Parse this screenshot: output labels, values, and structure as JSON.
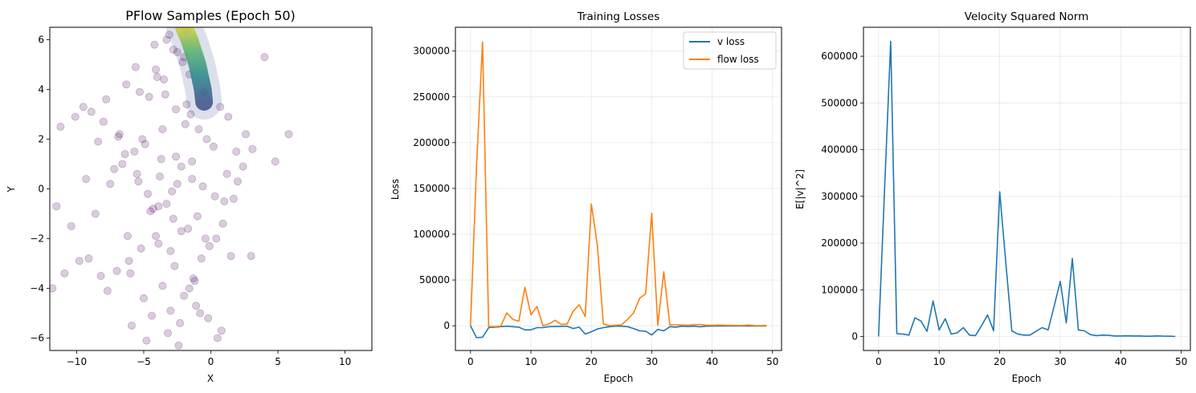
{
  "chart_data": [
    {
      "type": "scatter",
      "title": "PFlow Samples (Epoch 50)",
      "xlabel": "X",
      "ylabel": "Y",
      "xlim": [
        -12,
        12
      ],
      "ylim": [
        -6.5,
        6.5
      ],
      "xticks": [
        -10,
        -5,
        0,
        5,
        10
      ],
      "yticks": [
        -6,
        -4,
        -2,
        0,
        2,
        4,
        6
      ],
      "grid": false,
      "colormap": "viridis",
      "point_color": "#440154",
      "point_alpha": 0.2,
      "series": [
        {
          "x": [
            -4.2,
            -3.1,
            -2.5,
            -1.8,
            -5.6,
            -6.3,
            -7.8,
            -8.9,
            -10.1,
            -11.2,
            -9.5,
            -6.8,
            -4.9,
            -3.7,
            -2.2,
            -1.4,
            -0.6,
            0.3,
            1.2,
            1.9,
            2.6,
            3.1,
            4.0,
            4.8,
            5.8,
            -3.3,
            -2.8,
            -4.1,
            -5.2,
            -6.1,
            -7.0,
            -3.6,
            -2.0,
            -1.1,
            -0.2,
            0.8,
            1.5,
            -8.2,
            -9.1,
            -10.4,
            -11.5,
            -5.4,
            -4.5,
            -3.9,
            -2.7,
            -1.6,
            -0.8,
            0.5,
            1.7,
            -6.6,
            -7.5,
            -8.6,
            -3.0,
            -2.3,
            -4.8,
            -5.9,
            -1.2,
            -0.4,
            0.9,
            -9.8,
            -4.0,
            -3.4,
            -2.6,
            -1.9,
            -5.1,
            -6.4,
            -7.2,
            -2.1,
            -3.5,
            -4.6,
            -1.5,
            -0.9,
            0.2,
            -8.0,
            -6.9,
            -5.7,
            -3.8,
            -2.9,
            -4.3,
            -1.7,
            -0.1,
            1.0,
            2.0,
            -2.4,
            -3.2,
            -4.4,
            -5.0,
            -1.3,
            -0.7,
            0.4,
            -7.7,
            -6.0,
            -3.0,
            -2.2,
            -1.0,
            -4.7,
            -5.5,
            -2.6,
            -3.6,
            -1.8,
            3.0,
            2.4,
            -11.8,
            -10.9,
            -6.2,
            -3.9,
            -2.5,
            -1.4,
            -0.3,
            1.3,
            -5.3,
            -4.1,
            -2.8,
            -3.3,
            -2.0,
            -1.6,
            -0.5,
            0.7,
            -8.4,
            -9.3
          ],
          "y": [
            5.8,
            6.2,
            5.5,
            6.4,
            4.9,
            4.2,
            3.6,
            3.1,
            2.9,
            2.5,
            3.3,
            2.2,
            1.8,
            1.2,
            0.9,
            0.4,
            0.1,
            -0.3,
            0.6,
            1.5,
            2.2,
            1.6,
            5.3,
            1.1,
            2.2,
            -0.6,
            -1.2,
            -1.9,
            -2.4,
            -2.9,
            -3.3,
            -3.9,
            -4.3,
            -4.7,
            -5.2,
            -5.7,
            -2.7,
            -3.5,
            -2.8,
            -1.5,
            -0.7,
            0.3,
            -0.9,
            -2.2,
            -3.1,
            -4.0,
            -5.0,
            -6.0,
            -0.4,
            1.0,
            0.2,
            -1.0,
            -4.9,
            -5.4,
            -6.1,
            -5.5,
            -3.7,
            -2.0,
            -1.4,
            -2.9,
            4.5,
            3.8,
            3.2,
            2.6,
            2.0,
            1.4,
            0.8,
            5.1,
            4.4,
            3.7,
            3.0,
            2.4,
            1.7,
            2.7,
            2.1,
            1.5,
            0.5,
            -0.1,
            -0.8,
            -1.6,
            -2.3,
            -0.5,
            0.3,
            -6.3,
            -5.8,
            -5.1,
            -4.4,
            -3.6,
            -2.8,
            -2.0,
            -4.1,
            -3.4,
            -2.5,
            -1.7,
            -1.1,
            -0.2,
            0.6,
            1.3,
            2.4,
            3.4,
            -2.7,
            0.9,
            -4.0,
            -3.4,
            -1.9,
            -0.7,
            0.2,
            1.1,
            2.0,
            2.9,
            3.9,
            4.8,
            5.6,
            6.0,
            5.3,
            4.6,
            3.9,
            3.3,
            1.9,
            0.4
          ],
          "dense_band_x": [
            -2.0,
            -1.6,
            -1.3,
            -1.0,
            -0.8,
            -0.6,
            -0.5
          ],
          "dense_band_y": [
            6.5,
            6.0,
            5.5,
            5.0,
            4.5,
            4.0,
            3.5
          ]
        }
      ]
    },
    {
      "type": "line",
      "title": "Training Losses",
      "xlabel": "Epoch",
      "ylabel": "Loss",
      "xlim": [
        -2.5,
        51.5
      ],
      "ylim": [
        -27000,
        326000
      ],
      "xticks": [
        0,
        10,
        20,
        30,
        40,
        50
      ],
      "yticks": [
        0,
        50000,
        100000,
        150000,
        200000,
        250000,
        300000
      ],
      "grid": true,
      "legend_loc": "top-right",
      "x": [
        0,
        1,
        2,
        3,
        4,
        5,
        6,
        7,
        8,
        9,
        10,
        11,
        12,
        13,
        14,
        15,
        16,
        17,
        18,
        19,
        20,
        21,
        22,
        23,
        24,
        25,
        26,
        27,
        28,
        29,
        30,
        31,
        32,
        33,
        34,
        35,
        36,
        37,
        38,
        39,
        40,
        41,
        42,
        43,
        44,
        45,
        46,
        47,
        48,
        49
      ],
      "series": [
        {
          "name": "v loss",
          "color": "#1f77b4",
          "values": [
            0,
            -13000,
            -12500,
            -2000,
            -1500,
            -1000,
            -500,
            -1000,
            -1500,
            -4500,
            -4500,
            -2000,
            -2000,
            -1000,
            -800,
            -600,
            -500,
            -3000,
            -1500,
            -9000,
            -6500,
            -3500,
            -2000,
            -1000,
            -500,
            -500,
            -1000,
            -3000,
            -5500,
            -6000,
            -10000,
            -4000,
            -5500,
            -1000,
            -1500,
            -500,
            -800,
            -500,
            -1200,
            -500,
            -400,
            -300,
            -300,
            -200,
            -200,
            -200,
            -300,
            -200,
            -100,
            -200
          ]
        },
        {
          "name": "flow loss",
          "color": "#ff7f0e",
          "values": [
            0,
            175000,
            310000,
            -1000,
            -1000,
            -500,
            14000,
            7000,
            5000,
            42000,
            12000,
            21000,
            0,
            2000,
            6000,
            1500,
            2000,
            16000,
            23000,
            10000,
            133000,
            88000,
            2000,
            0,
            500,
            1000,
            7000,
            14000,
            30000,
            35000,
            123000,
            500,
            59000,
            1000,
            1000,
            800,
            500,
            1200,
            1500,
            600,
            500,
            800,
            500,
            400,
            300,
            200,
            800,
            200,
            100,
            200
          ]
        }
      ]
    },
    {
      "type": "line",
      "title": "Velocity Squared Norm",
      "xlabel": "Epoch",
      "ylabel": "E[|v|^2]",
      "xlim": [
        -2.5,
        51.5
      ],
      "ylim": [
        -30000,
        662000
      ],
      "xticks": [
        0,
        10,
        20,
        30,
        40,
        50
      ],
      "yticks": [
        0,
        100000,
        200000,
        300000,
        400000,
        500000,
        600000
      ],
      "grid": true,
      "x": [
        0,
        1,
        2,
        3,
        4,
        5,
        6,
        7,
        8,
        9,
        10,
        11,
        12,
        13,
        14,
        15,
        16,
        17,
        18,
        19,
        20,
        21,
        22,
        23,
        24,
        25,
        26,
        27,
        28,
        29,
        30,
        31,
        32,
        33,
        34,
        35,
        36,
        37,
        38,
        39,
        40,
        41,
        42,
        43,
        44,
        45,
        46,
        47,
        48,
        49
      ],
      "series": [
        {
          "color": "#1f77b4",
          "values": [
            0,
            320000,
            632000,
            6000,
            5000,
            3000,
            40000,
            33000,
            11000,
            76000,
            14000,
            38000,
            5000,
            8000,
            19000,
            3000,
            2000,
            23000,
            46000,
            12000,
            310000,
            160000,
            12000,
            5000,
            3000,
            3000,
            11000,
            19000,
            14000,
            65000,
            118000,
            29000,
            167000,
            14000,
            12000,
            4000,
            2000,
            3000,
            2500,
            1000,
            1000,
            1500,
            1000,
            1200,
            500,
            600,
            1200,
            800,
            500,
            0
          ]
        }
      ]
    }
  ]
}
